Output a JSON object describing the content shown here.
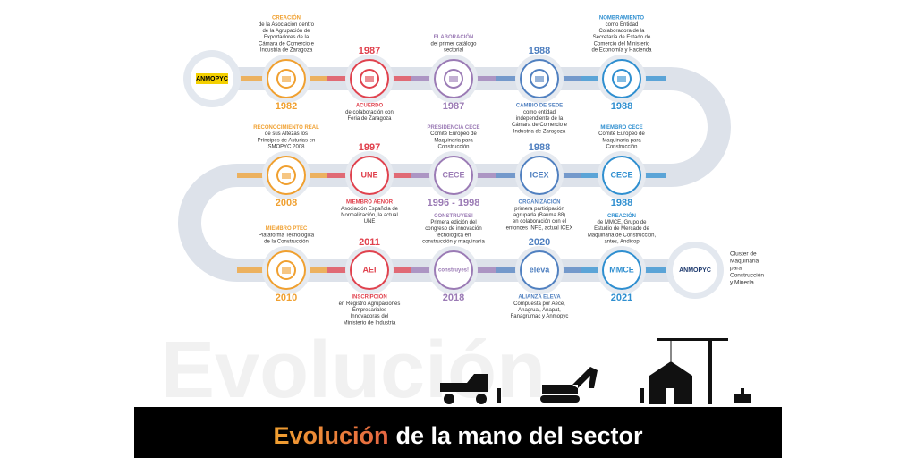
{
  "header_logo": "ANMOPYC",
  "milestones": [
    {
      "year": "1982",
      "title": "CREACIÓN",
      "description": [
        "de la Asociación dentro",
        "de la Agrupación de",
        "Exportadores de la",
        "Cámara de Comercio e",
        "Industria de Zaragoza"
      ]
    },
    {
      "year": "1987",
      "title": "ACUERDO",
      "description": [
        "de colaboración con",
        "Feria de Zaragoza"
      ]
    },
    {
      "year": "1987",
      "title": "ELABORACIÓN",
      "description": [
        "del primer catálogo",
        "sectorial"
      ]
    },
    {
      "year": "1988",
      "title": "CAMBIO DE SEDE",
      "description": [
        "como entidad",
        "independiente de la",
        "Cámara de Comercio e",
        "Industria de Zaragoza"
      ]
    },
    {
      "year": "1988",
      "title": "NOMBRAMIENTO",
      "description": [
        "como Entidad",
        "Colaboradora de la",
        "Secretaría de Estado de",
        "Comercio del Ministerio",
        "de Economía y Hacienda"
      ]
    },
    {
      "year": "1988",
      "title": "MIEMBRO CECE",
      "description": [
        "Comité Europeo de",
        "Maquinaria para",
        "Construcción"
      ],
      "logo": "CECE"
    },
    {
      "year": "1988",
      "title": "ORGANIZACIÓN",
      "description": [
        "primera participación",
        "agrupada (Bauma 88)",
        "en colaboración con el",
        "entonces INFE, actual ICEX"
      ],
      "logo": "ICEX"
    },
    {
      "year": "1996 - 1998",
      "title": "PRESIDENCIA CECE",
      "description": [
        "Comité Europeo de",
        "Maquinaria para",
        "Construcción"
      ],
      "logo": "CECE"
    },
    {
      "year": "1997",
      "title": "MIEMBRO AENOR",
      "description": [
        "Asociación Española de",
        "Normalización, la actual",
        "UNE"
      ],
      "logo": "UNE"
    },
    {
      "year": "2008",
      "title": "RECONOCIMIENTO REAL",
      "description": [
        "de sus Altezas los",
        "Príncipes de Asturias en",
        "SMOPYC 2008"
      ]
    },
    {
      "year": "2010",
      "title": "MIEMBRO PTEC",
      "description": [
        "Plataforma Tecnológica",
        "de la Construcción"
      ]
    },
    {
      "year": "2011",
      "title": "INSCRIPCIÓN",
      "description": [
        "en Registro Agrupaciones",
        "Empresariales",
        "Innovadoras del",
        "Ministerio de Industria"
      ],
      "logo": "AEI"
    },
    {
      "year": "2018",
      "title": "CONSTRUYES!",
      "description": [
        "Primera edición del",
        "congreso de innovación",
        "tecnológica en",
        "construcción y maquinaria"
      ],
      "logo": "construyes!"
    },
    {
      "year": "2020",
      "title": "ALIANZA ELEVA",
      "description": [
        "Compuesta por Aece,",
        "Anagrual, Anapat,",
        "Fanagrumac y Anmopyc"
      ],
      "logo": "eleva"
    },
    {
      "year": "2021",
      "title": "CREACIÓN",
      "description": [
        "de MMCE, Grupo de",
        "Estudio de Mercado de",
        "Maquinaria de Construcción,",
        "antes, Andicop"
      ],
      "logo": "MMCE"
    }
  ],
  "footer_logo": "ANMOPYC",
  "footer_note": [
    "Cluster de",
    "Maquinaria",
    "para",
    "Construcción",
    "y Minería"
  ],
  "watermark": "Evolución",
  "banner": {
    "highlight": "Evolución",
    "rest": "de la mano del sector"
  }
}
